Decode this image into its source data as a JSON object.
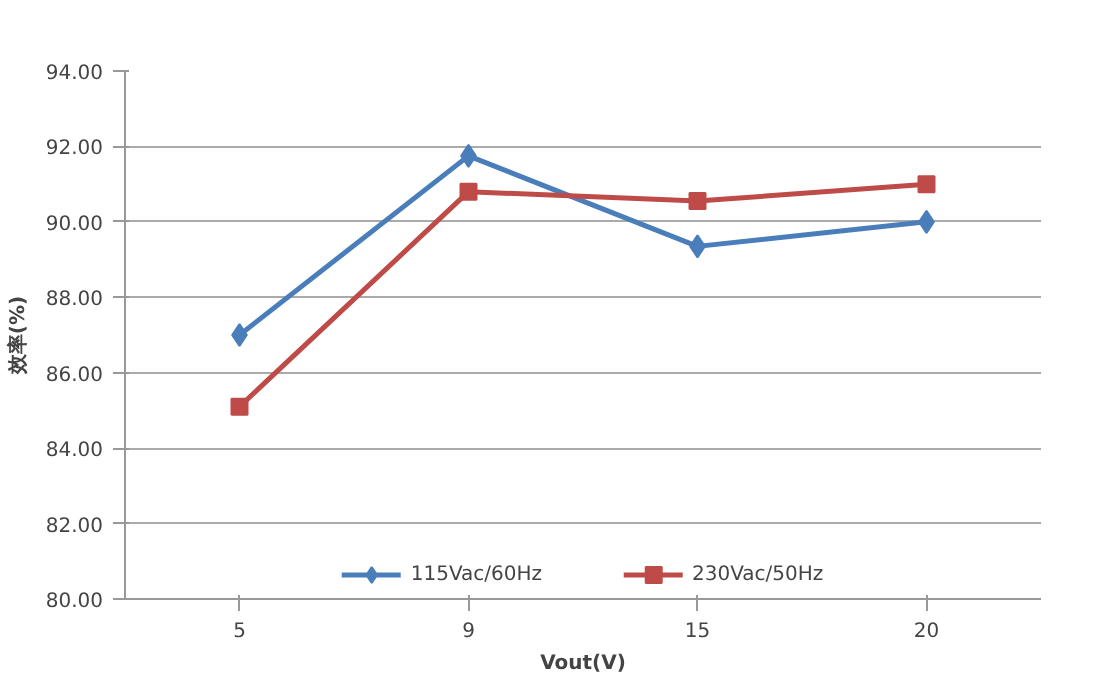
{
  "chart_data": {
    "type": "line",
    "xlabel": "Vout(V)",
    "ylabel": "效率(%)",
    "categories": [
      "5",
      "9",
      "15",
      "20"
    ],
    "series": [
      {
        "name": "115Vac/60Hz",
        "color": "#4a7ebb",
        "marker": "diamond",
        "values": [
          87.0,
          91.75,
          89.35,
          90.0
        ]
      },
      {
        "name": "230Vac/50Hz",
        "color": "#be4b48",
        "marker": "square",
        "values": [
          85.1,
          90.8,
          90.55,
          91.0
        ]
      }
    ],
    "ylim": [
      80,
      94
    ],
    "yticks": [
      {
        "value": 80,
        "label": "80.00"
      },
      {
        "value": 82,
        "label": "82.00"
      },
      {
        "value": 84,
        "label": "84.00"
      },
      {
        "value": 86,
        "label": "86.00"
      },
      {
        "value": 88,
        "label": "88.00"
      },
      {
        "value": 90,
        "label": "90.00"
      },
      {
        "value": 92,
        "label": "92.00"
      },
      {
        "value": 94,
        "label": "94.00"
      }
    ],
    "grid": "y",
    "legend": "bottom",
    "line_style": "solid"
  }
}
